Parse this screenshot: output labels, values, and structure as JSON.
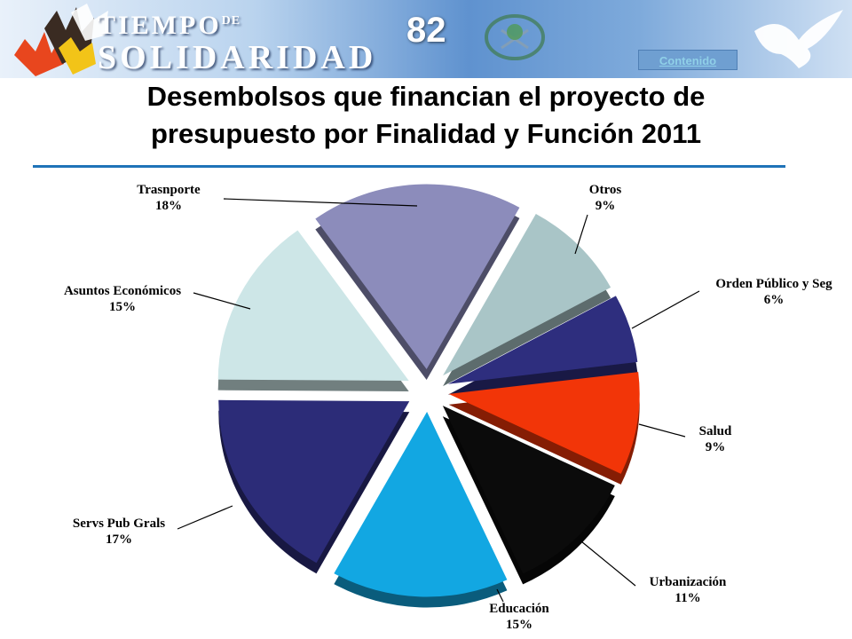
{
  "header": {
    "brand_line1": "TIEMPO",
    "brand_de": "DE",
    "brand_line2": "SOLIDARIDAD",
    "page_number": "82",
    "contenido_label": "Contenido"
  },
  "slide": {
    "title_line1": "Desembolsos que financian el proyecto de",
    "title_line2": "presupuesto por Finalidad y Función 2011"
  },
  "chart_data": {
    "type": "pie",
    "title": "Desembolsos que financian el proyecto de presupuesto por Finalidad y Función 2011",
    "style": "exploded 3D",
    "slices": [
      {
        "name": "Trasnporte",
        "percent_label": "18%",
        "value": 18,
        "color": "#8c8cbb"
      },
      {
        "name": "Otros",
        "percent_label": "9%",
        "value": 9,
        "color": "#a9c5c7"
      },
      {
        "name": "Orden Público y Seg",
        "percent_label": "6%",
        "value": 6,
        "color": "#2e2e7e"
      },
      {
        "name": "Salud",
        "percent_label": "9%",
        "value": 9,
        "color": "#f23508"
      },
      {
        "name": "Urbanización",
        "percent_label": "11%",
        "value": 11,
        "color": "#0b0b0b"
      },
      {
        "name": "Educación",
        "percent_label": "15%",
        "value": 15,
        "color": "#12a7e2"
      },
      {
        "name": "Servs Pub Grals",
        "percent_label": "17%",
        "value": 17,
        "color": "#2c2c78"
      },
      {
        "name": "Asuntos Económicos",
        "percent_label": "15%",
        "value": 15,
        "color": "#cde6e7"
      }
    ]
  }
}
